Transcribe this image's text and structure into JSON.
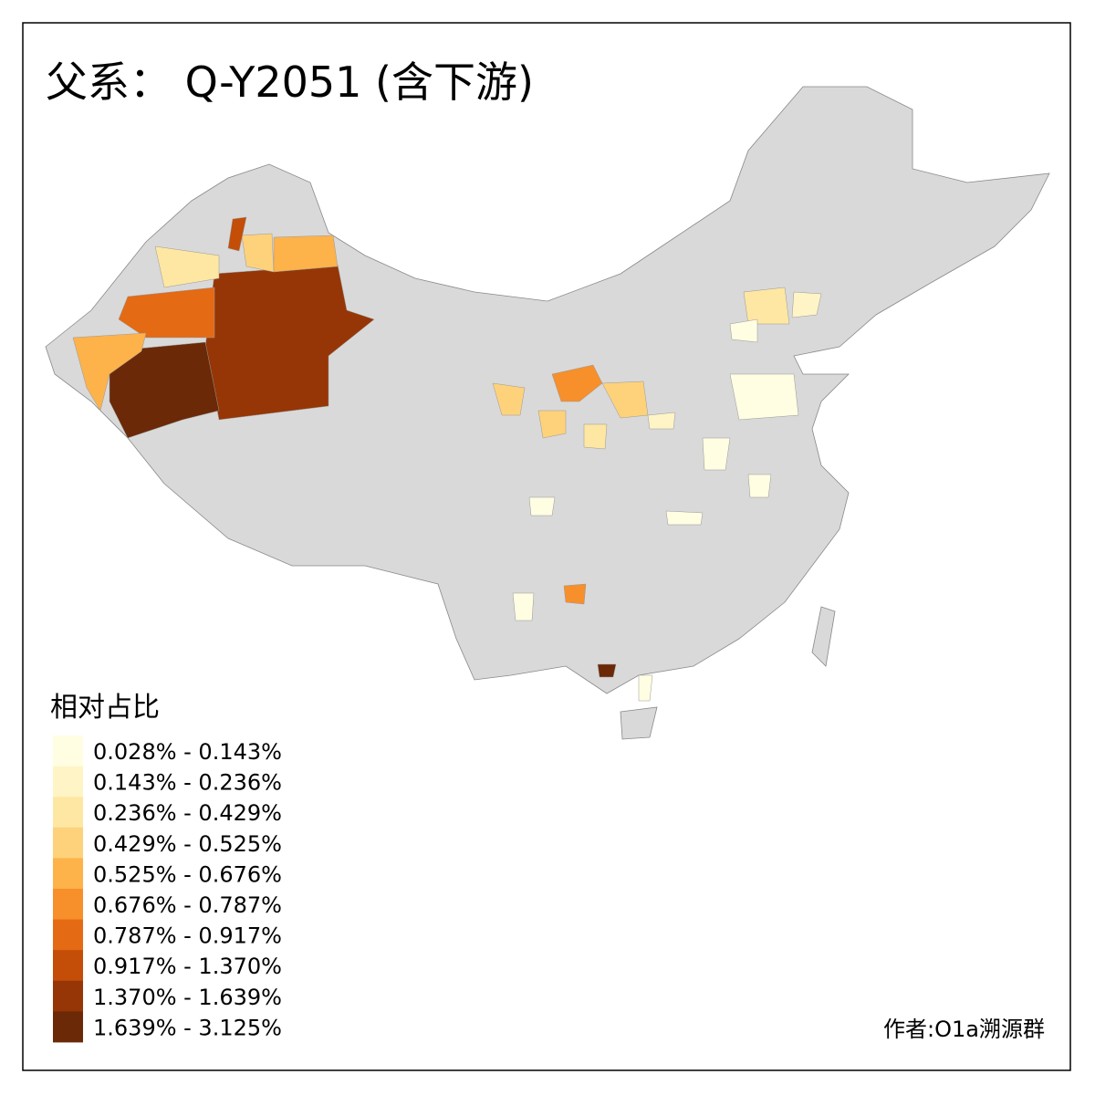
{
  "title": "父系： Q-Y2051 (含下游)",
  "legend": {
    "title": "相对占比",
    "items": [
      {
        "label": "0.028% - 0.143%",
        "color": "#fffde2"
      },
      {
        "label": "0.143% - 0.236%",
        "color": "#fff4c6"
      },
      {
        "label": "0.236% - 0.429%",
        "color": "#fee7a2"
      },
      {
        "label": "0.429% - 0.525%",
        "color": "#fed27a"
      },
      {
        "label": "0.525% - 0.676%",
        "color": "#fdb24a"
      },
      {
        "label": "0.676% - 0.787%",
        "color": "#f78f2b"
      },
      {
        "label": "0.787% - 0.917%",
        "color": "#e46a14"
      },
      {
        "label": "0.917% - 1.370%",
        "color": "#c44d07"
      },
      {
        "label": "1.370% - 1.639%",
        "color": "#963606"
      },
      {
        "label": "1.639% - 3.125%",
        "color": "#6b2908"
      }
    ]
  },
  "credit": "作者:O1a溯源群"
}
